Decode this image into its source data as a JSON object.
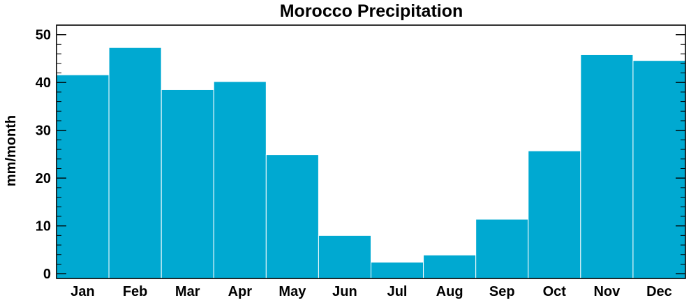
{
  "chart_data": {
    "type": "bar",
    "title": "Morocco Precipitation",
    "xlabel": "",
    "ylabel": "mm/month",
    "categories": [
      "Jan",
      "Feb",
      "Mar",
      "Apr",
      "May",
      "Jun",
      "Jul",
      "Aug",
      "Sep",
      "Oct",
      "Nov",
      "Dec"
    ],
    "values": [
      41.6,
      47.3,
      38.5,
      40.2,
      24.9,
      8.0,
      2.4,
      3.9,
      11.4,
      25.7,
      45.8,
      44.6
    ],
    "ylim": [
      -1,
      52
    ],
    "yticks": [
      0,
      10,
      20,
      30,
      40,
      50
    ],
    "grid": false,
    "legend": "none",
    "bar_color": "#00a9d1",
    "bar_edge_color": "#ffffff"
  }
}
